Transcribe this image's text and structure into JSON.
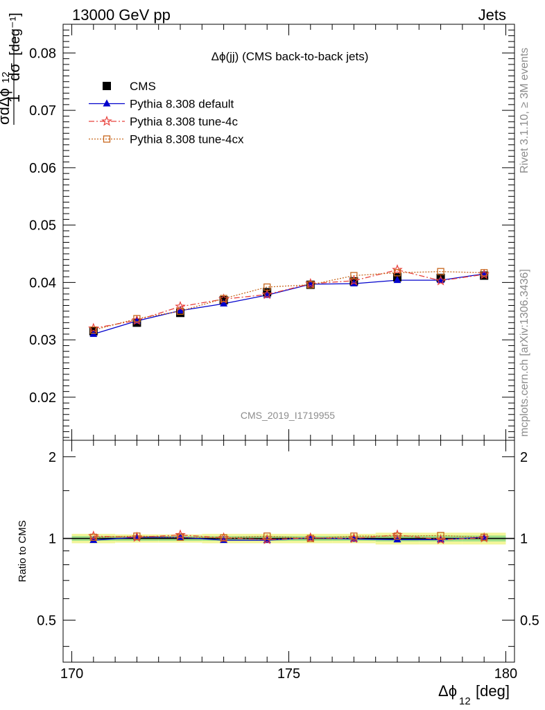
{
  "header": {
    "left": "13000 GeV pp",
    "right": "Jets"
  },
  "side": {
    "rivet": "Rivet 3.1.10, ≥ 3M events",
    "mcplots": "mcplots.cern.ch [arXiv:1306.3436]"
  },
  "watermark": "CMS_2019_I1719955",
  "chart_data": [
    {
      "type": "line",
      "title": "Δϕ(jj) (CMS back-to-back jets)",
      "ylabel": "1/σ dσ/dΔϕ₁₂ [deg⁻¹]",
      "xlabel": "Δϕ₁₂ [deg]",
      "xlim": [
        169.8,
        180.2
      ],
      "ylim": [
        0.0125,
        0.085
      ],
      "yticks": [
        "0.02",
        "0.03",
        "0.04",
        "0.05",
        "0.06",
        "0.07",
        "0.08"
      ],
      "xticks": [
        "170",
        "175",
        "180"
      ],
      "x": [
        170.5,
        171.5,
        172.5,
        173.5,
        174.5,
        175.5,
        176.5,
        177.5,
        178.5,
        179.5
      ],
      "series": [
        {
          "name": "CMS",
          "color": "#000000",
          "marker": "square-filled",
          "values": [
            0.0315,
            0.033,
            0.0347,
            0.0369,
            0.0383,
            0.0396,
            0.0402,
            0.0409,
            0.0408,
            0.0412
          ]
        },
        {
          "name": "Pythia 8.308 default",
          "color": "#0000cc",
          "marker": "triangle-filled",
          "values": [
            0.031,
            0.0333,
            0.0351,
            0.0363,
            0.0378,
            0.0397,
            0.0398,
            0.0404,
            0.0404,
            0.0415
          ]
        },
        {
          "name": "Pythia 8.308 tune-4c",
          "color": "#e8413c",
          "marker": "star-open",
          "values": [
            0.032,
            0.0334,
            0.0358,
            0.0371,
            0.0379,
            0.0398,
            0.0403,
            0.0422,
            0.0403,
            0.0414
          ]
        },
        {
          "name": "Pythia 8.308 tune-4cx",
          "color": "#c8661c",
          "marker": "square-open",
          "values": [
            0.0317,
            0.0337,
            0.035,
            0.0372,
            0.0392,
            0.0396,
            0.0412,
            0.0417,
            0.0419,
            0.0417
          ]
        }
      ],
      "legend": "top-left"
    },
    {
      "type": "line",
      "ylabel": "Ratio to CMS",
      "xlabel": "Δϕ₁₂ [deg]",
      "xlim": [
        169.8,
        180.2
      ],
      "ylim": [
        0.35,
        2.3
      ],
      "yticks": [
        "0.5",
        "1",
        "2"
      ],
      "x": [
        170.5,
        171.5,
        172.5,
        173.5,
        174.5,
        175.5,
        176.5,
        177.5,
        178.5,
        179.5
      ],
      "band_outer": [
        0.04,
        0.035,
        0.035,
        0.04,
        0.04,
        0.04,
        0.04,
        0.05,
        0.05,
        0.05
      ],
      "band_inner": [
        0.02,
        0.02,
        0.02,
        0.02,
        0.02,
        0.02,
        0.02,
        0.025,
        0.025,
        0.025
      ],
      "series": [
        {
          "name": "Pythia 8.308 default",
          "color": "#0000cc",
          "marker": "triangle-filled",
          "values": [
            0.985,
            1.01,
            1.01,
            0.985,
            0.985,
            1.005,
            0.995,
            0.99,
            0.99,
            1.01
          ]
        },
        {
          "name": "Pythia 8.308 tune-4c",
          "color": "#e8413c",
          "marker": "star-open",
          "values": [
            1.02,
            1.01,
            1.03,
            1.005,
            0.99,
            1.005,
            1.0,
            1.03,
            0.99,
            1.005
          ]
        },
        {
          "name": "Pythia 8.308 tune-4cx",
          "color": "#c8661c",
          "marker": "square-open",
          "values": [
            1.01,
            1.02,
            1.01,
            1.005,
            1.02,
            1.0,
            1.02,
            1.02,
            1.025,
            1.01
          ]
        }
      ]
    }
  ]
}
